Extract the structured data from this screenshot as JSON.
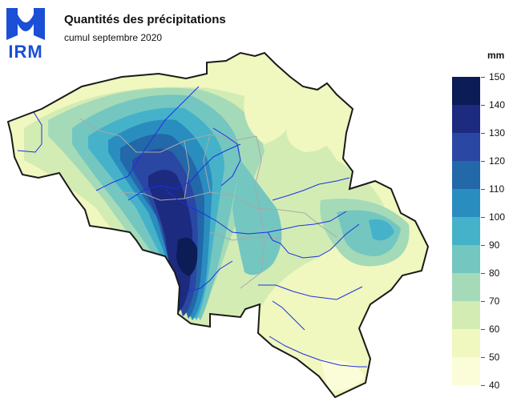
{
  "header": {
    "title": "Quantités des précipitations",
    "subtitle": "cumul septembre 2020"
  },
  "logo": {
    "text": "IRM",
    "icon": "irm-logo-icon"
  },
  "legend": {
    "unit": "mm",
    "ticks": [
      "150",
      "140",
      "130",
      "120",
      "110",
      "100",
      "90",
      "80",
      "70",
      "60",
      "50",
      "40"
    ],
    "colors": [
      "#0b1c56",
      "#1c2a80",
      "#2a47a3",
      "#2368a8",
      "#2a8dc0",
      "#45b2c9",
      "#74c6c0",
      "#a4dab8",
      "#d3ecb4",
      "#f0f7bf",
      "#fbfdd8"
    ]
  },
  "map": {
    "icon": "belgium-precipitation-map",
    "country": "Belgium",
    "colors": {
      "border": "#1a1a1a",
      "river": "#1f2fe0",
      "province": "#a8a8a8"
    }
  }
}
